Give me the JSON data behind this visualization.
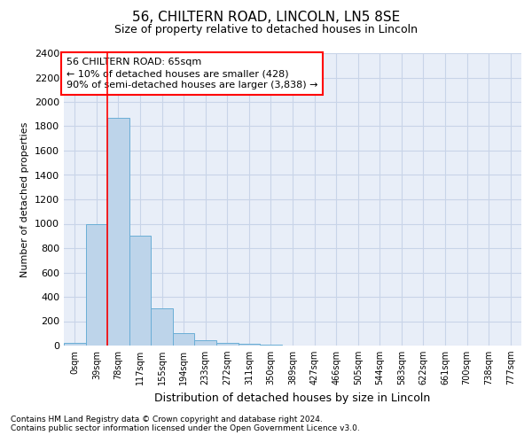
{
  "title_line1": "56, CHILTERN ROAD, LINCOLN, LN5 8SE",
  "title_line2": "Size of property relative to detached houses in Lincoln",
  "xlabel": "Distribution of detached houses by size in Lincoln",
  "ylabel": "Number of detached properties",
  "categories": [
    "0sqm",
    "39sqm",
    "78sqm",
    "117sqm",
    "155sqm",
    "194sqm",
    "233sqm",
    "272sqm",
    "311sqm",
    "350sqm",
    "389sqm",
    "427sqm",
    "466sqm",
    "505sqm",
    "544sqm",
    "583sqm",
    "622sqm",
    "661sqm",
    "700sqm",
    "738sqm",
    "777sqm"
  ],
  "values": [
    20,
    1000,
    1870,
    900,
    305,
    105,
    45,
    25,
    15,
    5,
    2,
    0,
    0,
    0,
    0,
    0,
    0,
    0,
    0,
    0,
    0
  ],
  "bar_color": "#bdd4ea",
  "bar_edge_color": "#6aaed6",
  "ylim": [
    0,
    2400
  ],
  "yticks": [
    0,
    200,
    400,
    600,
    800,
    1000,
    1200,
    1400,
    1600,
    1800,
    2000,
    2200,
    2400
  ],
  "annotation_text": "56 CHILTERN ROAD: 65sqm\n← 10% of detached houses are smaller (428)\n90% of semi-detached houses are larger (3,838) →",
  "footnote1": "Contains HM Land Registry data © Crown copyright and database right 2024.",
  "footnote2": "Contains public sector information licensed under the Open Government Licence v3.0.",
  "grid_color": "#c8d4e8",
  "background_color": "#e8eef8",
  "title_fontsize": 11,
  "subtitle_fontsize": 9,
  "xlabel_fontsize": 9,
  "ylabel_fontsize": 8,
  "tick_fontsize": 8,
  "xtick_fontsize": 7,
  "annot_fontsize": 8,
  "footnote_fontsize": 6.5,
  "red_line_bar_index": 2
}
